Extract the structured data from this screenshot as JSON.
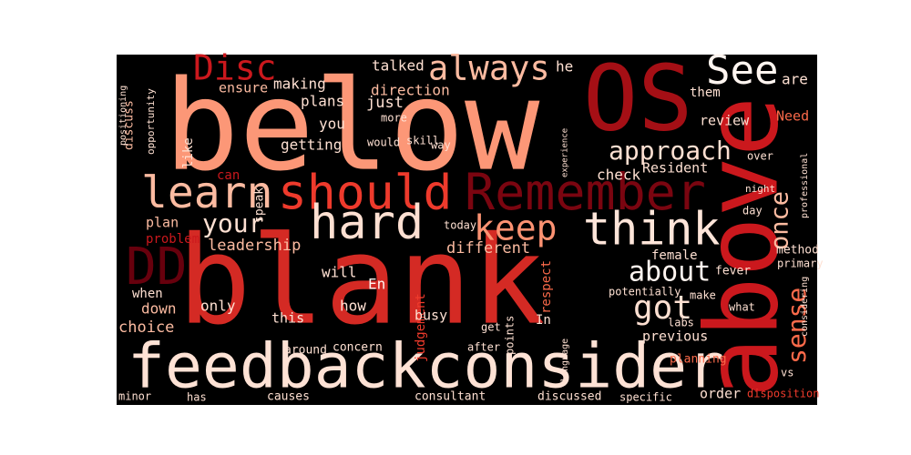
{
  "words": [
    "blank",
    "below",
    "feedbackconsider",
    "above",
    "OS",
    "should",
    "learn",
    "Remember",
    "think",
    "hard",
    "keep",
    "DD",
    "Disc",
    "always",
    "See",
    "approach",
    "once",
    "sense",
    "got",
    "about",
    "your",
    "leadership",
    "choice",
    "down",
    "when",
    "only",
    "this",
    "will",
    "how",
    "En",
    "respect",
    "different",
    "judgement",
    "busy",
    "direction",
    "talked",
    "making",
    "plans",
    "you",
    "getting",
    "just",
    "ensure",
    "discuss",
    "like",
    "plan",
    "problem",
    "check",
    "Resident",
    "review",
    "them",
    "female",
    "previous",
    "planning",
    "order",
    "disposition",
    "consultant",
    "discussed",
    "concern",
    "around",
    "causes",
    "minor",
    "has",
    "he",
    "Need",
    "are",
    "fever",
    "method",
    "primary",
    "skill",
    "would",
    "more",
    "way",
    "today",
    "make",
    "speak",
    "can",
    "over",
    "day",
    "night",
    "In",
    "points",
    "get",
    "after",
    "labs",
    "what",
    "vs",
    "specific",
    "potentially",
    "opportunity",
    "positioning",
    "professional",
    "considering",
    "experience",
    "language"
  ]
}
